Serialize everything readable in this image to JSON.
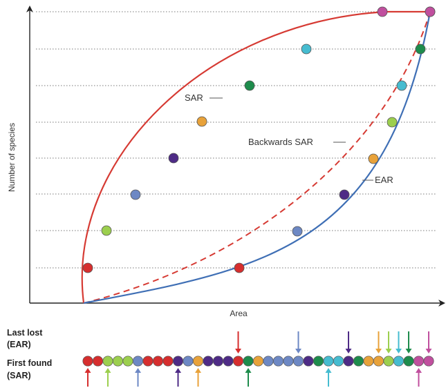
{
  "colors": {
    "sar": "#d63a33",
    "ear": "#3f6fb5",
    "grid": "#777777",
    "axis": "#222222",
    "species": {
      "red": "#d62e2e",
      "lightgreen": "#9ccf4e",
      "slateblue": "#6d88c4",
      "purple": "#4e2b86",
      "orange": "#e8a23a",
      "darkgreen": "#1e8c4c",
      "cyan": "#46bcd0",
      "magenta": "#c04f9e"
    }
  },
  "axes": {
    "y_label": "Number of species",
    "x_label": "Area"
  },
  "curves": {
    "sar_label": "SAR",
    "backwards_sar_label": "Backwards SAR",
    "ear_label": "EAR"
  },
  "sar_points_order": [
    "red",
    "lightgreen",
    "slateblue",
    "purple",
    "orange",
    "darkgreen",
    "cyan",
    "magenta",
    "magenta"
  ],
  "ear_points_order": [
    "red",
    "slateblue",
    "purple",
    "orange",
    "lightgreen",
    "cyan",
    "darkgreen",
    "magenta"
  ],
  "strip": {
    "last_lost_label_1": "Last lost",
    "last_lost_label_2": "(EAR)",
    "first_found_label_1": "First found",
    "first_found_label_2": "(SAR)",
    "sequence": [
      "red",
      "red",
      "lightgreen",
      "lightgreen",
      "lightgreen",
      "slateblue",
      "red",
      "red",
      "red",
      "purple",
      "slateblue",
      "orange",
      "purple",
      "purple",
      "purple",
      "red",
      "darkgreen",
      "orange",
      "slateblue",
      "slateblue",
      "slateblue",
      "slateblue",
      "purple",
      "darkgreen",
      "cyan",
      "cyan",
      "purple",
      "darkgreen",
      "orange",
      "orange",
      "lightgreen",
      "cyan",
      "darkgreen",
      "magenta",
      "magenta"
    ],
    "last_lost_arrows": [
      "red",
      "slateblue",
      "purple",
      "orange",
      "lightgreen",
      "cyan",
      "darkgreen",
      "magenta"
    ],
    "first_found_arrows": [
      "red",
      "lightgreen",
      "slateblue",
      "purple",
      "orange",
      "darkgreen",
      "cyan",
      "magenta"
    ]
  }
}
